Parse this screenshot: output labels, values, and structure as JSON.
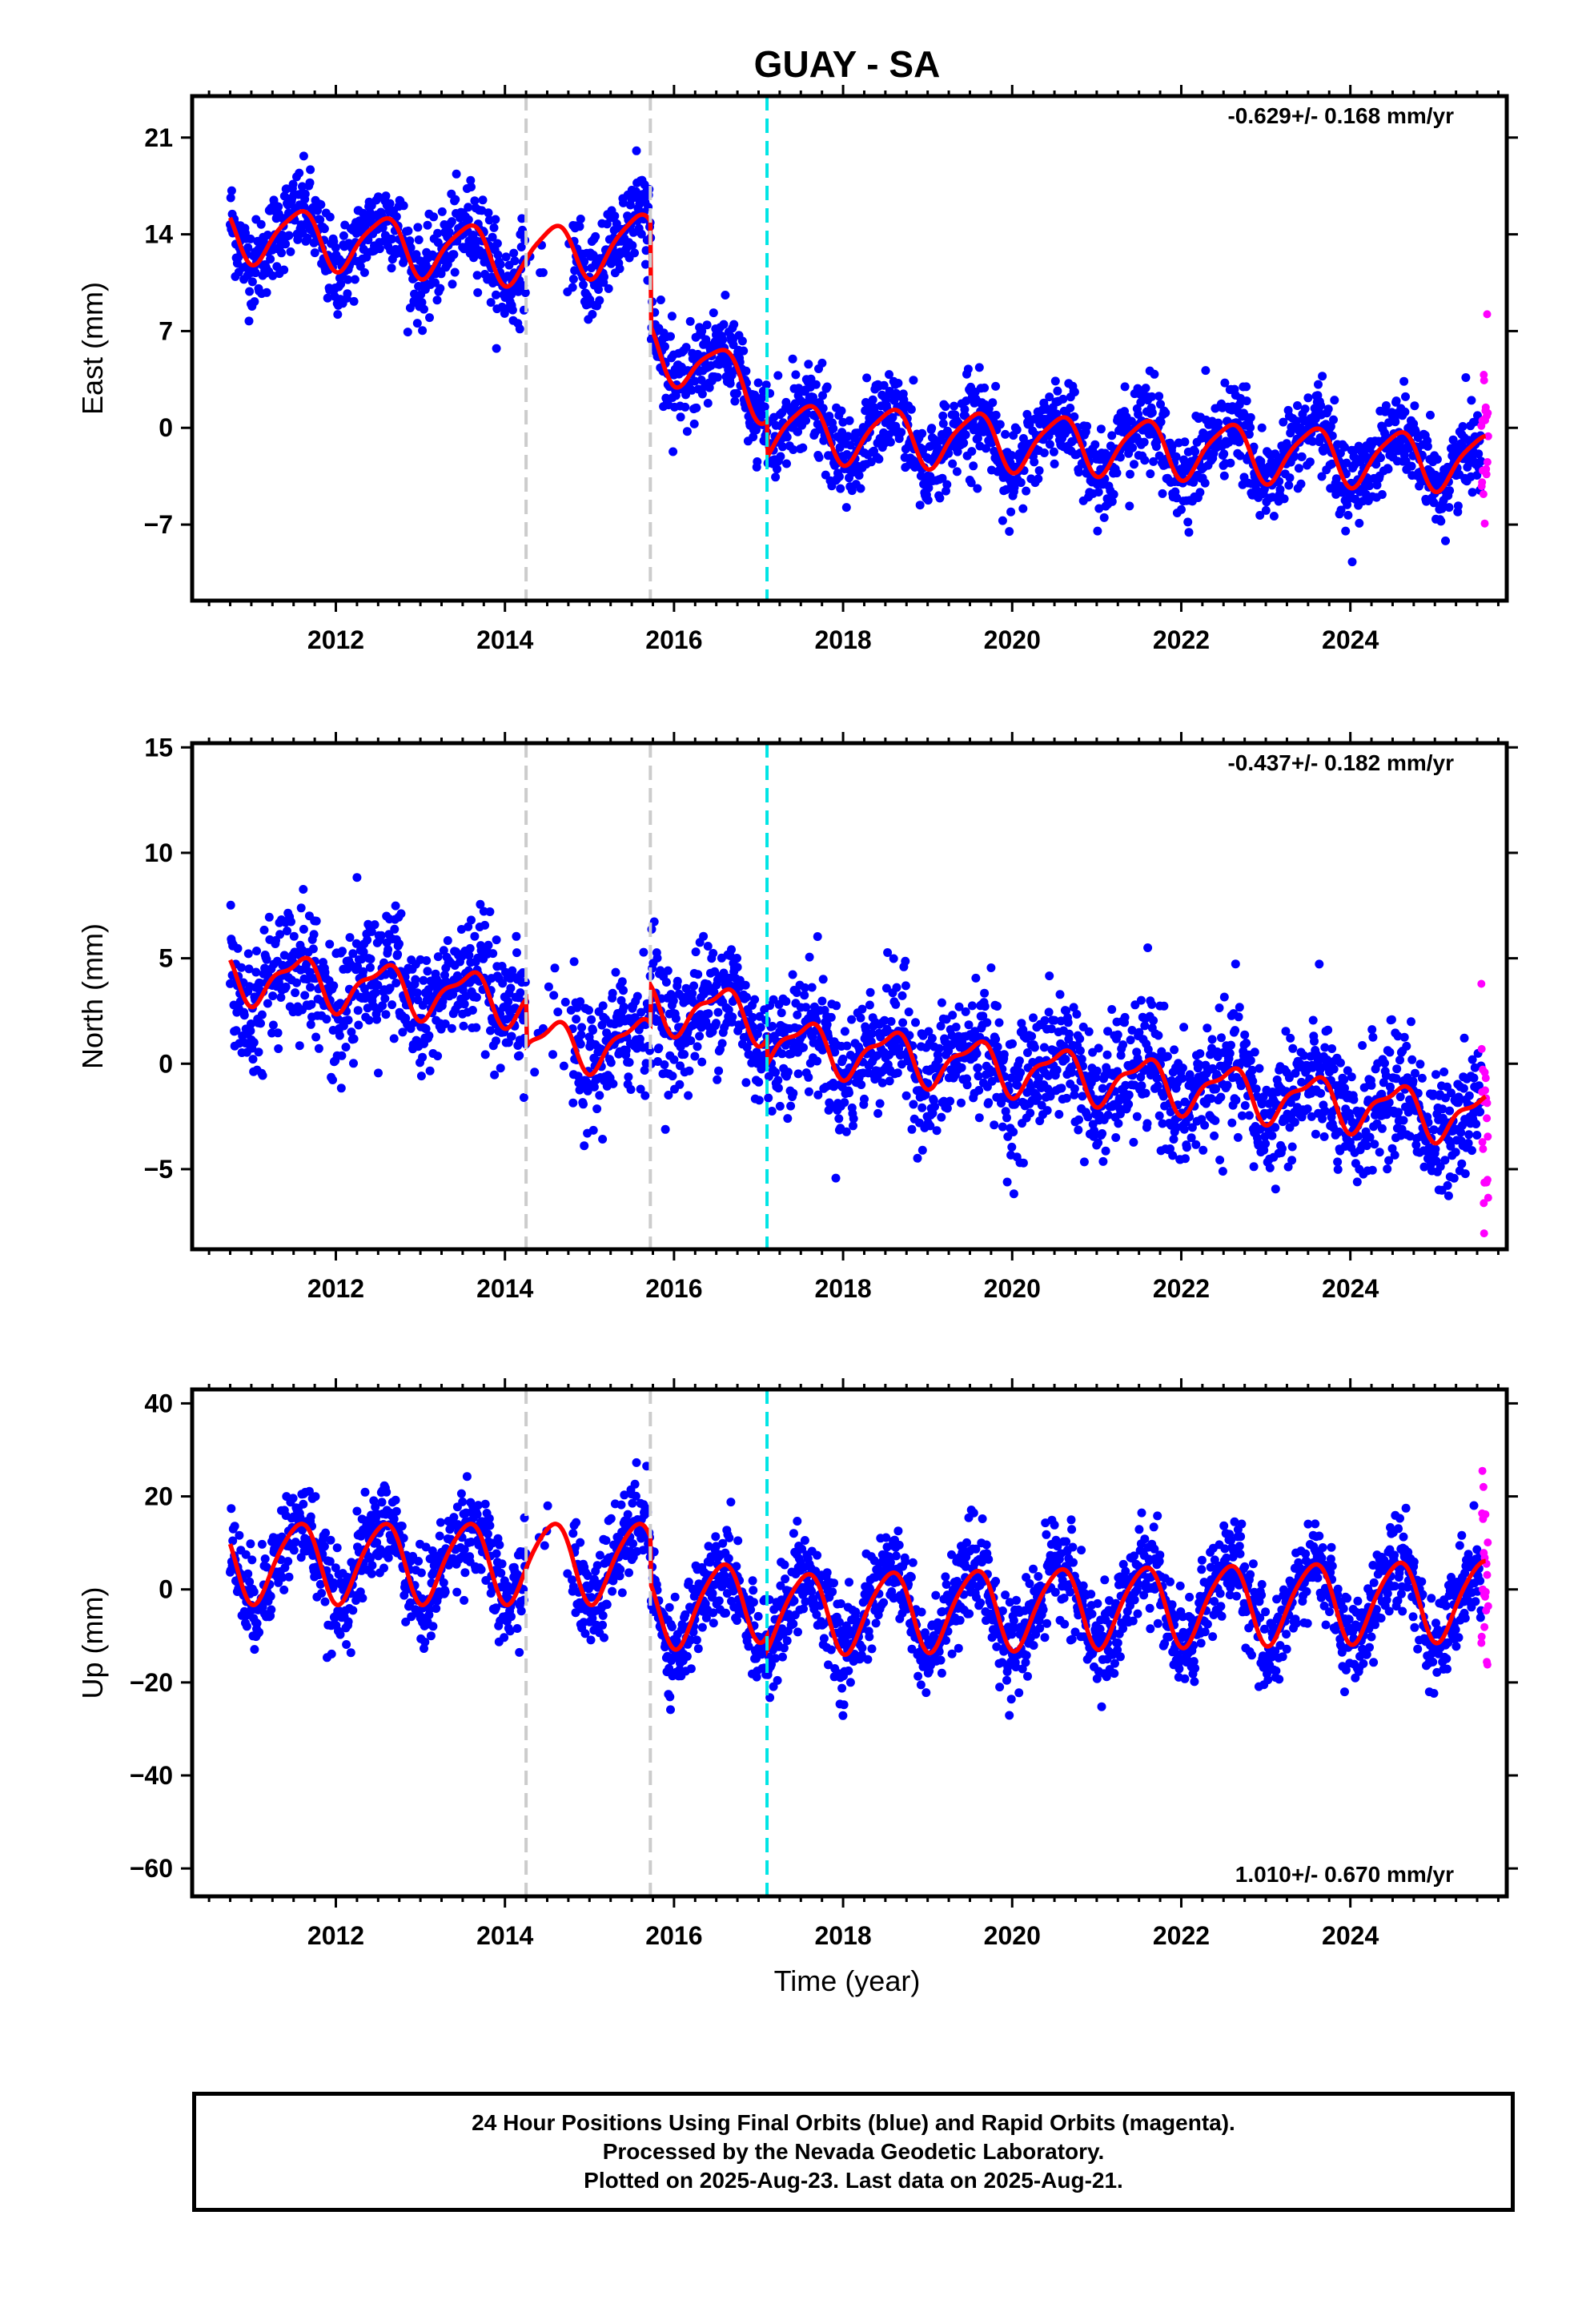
{
  "chart_data": {
    "type": "scatter",
    "title": "GUAY - SA",
    "xlabel": "Time (year)",
    "x_ticks": [
      "2012",
      "2014",
      "2016",
      "2018",
      "2020",
      "2022",
      "2024"
    ],
    "xlim": [
      2010.3,
      2025.85
    ],
    "breaks": [
      {
        "year": 2014.25,
        "color": "#cccccc"
      },
      {
        "year": 2015.72,
        "color": "#cccccc"
      },
      {
        "year": 2017.1,
        "color": "#00e5e5"
      }
    ],
    "data_span": {
      "start": 2010.75,
      "final_end": 2025.55,
      "rapid_end": 2025.63
    },
    "colors": {
      "final": "#0000ff",
      "rapid": "#ff00ff",
      "model": "#ff0000"
    },
    "panels": [
      {
        "ylabel": "East (mm)",
        "ylim": [
          -12.5,
          24
        ],
        "y_ticks": [
          21,
          14,
          7,
          0,
          -7
        ],
        "y_tick_labels": [
          "21",
          "14",
          "7",
          "0",
          "−7"
        ],
        "rate_label": "-0.629+/- 0.168 mm/yr",
        "rate_position": "top-right",
        "model": {
          "offsets": [
            {
              "year": 2010.75,
              "value": 14.2
            },
            {
              "year": 2014.25,
              "value": 12.4
            },
            {
              "year": 2015.72,
              "value": 13.6
            },
            {
              "year": 2015.73,
              "value": 6.0
            },
            {
              "year": 2017.1,
              "value": 2.4
            },
            {
              "year": 2017.11,
              "value": -0.2
            },
            {
              "year": 2025.6,
              "value": -2.5
            }
          ],
          "annual_amp": 2.0,
          "semi_amp": 0.4,
          "noise": 1.6
        }
      },
      {
        "ylabel": "North (mm)",
        "ylim": [
          -8.8,
          15.2
        ],
        "y_ticks": [
          15,
          10,
          5,
          0,
          -5
        ],
        "y_tick_labels": [
          "15",
          "10",
          "5",
          "0",
          "−5"
        ],
        "rate_label": "-0.437+/- 0.182 mm/yr",
        "rate_position": "top-right",
        "model": {
          "offsets": [
            {
              "year": 2010.75,
              "value": 4.2
            },
            {
              "year": 2014.25,
              "value": 3.0
            },
            {
              "year": 2014.26,
              "value": 0.8
            },
            {
              "year": 2015.72,
              "value": 1.0
            },
            {
              "year": 2015.73,
              "value": 2.8
            },
            {
              "year": 2017.1,
              "value": 2.2
            },
            {
              "year": 2017.11,
              "value": 1.0
            },
            {
              "year": 2025.6,
              "value": -2.6
            }
          ],
          "annual_amp": 1.1,
          "semi_amp": 0.4,
          "noise": 1.5
        }
      },
      {
        "ylabel": "Up (mm)",
        "ylim": [
          -66,
          43
        ],
        "y_ticks": [
          40,
          20,
          0,
          -20,
          -40,
          -60
        ],
        "y_tick_labels": [
          "40",
          "20",
          "0",
          "−20",
          "−40",
          "−60"
        ],
        "rate_label": "1.010+/- 0.670 mm/yr",
        "rate_position": "bottom-right",
        "model": {
          "offsets": [
            {
              "year": 2010.75,
              "value": 6.0
            },
            {
              "year": 2015.72,
              "value": 6.0
            },
            {
              "year": 2015.73,
              "value": -4.0
            },
            {
              "year": 2017.1,
              "value": -2.0
            },
            {
              "year": 2017.11,
              "value": -5.0
            },
            {
              "year": 2025.6,
              "value": -2.0
            }
          ],
          "annual_amp": 8.5,
          "semi_amp": 1.2,
          "noise": 5.0
        }
      }
    ]
  },
  "footer": {
    "line1": "24 Hour Positions Using Final Orbits (blue) and Rapid Orbits (magenta).",
    "line2": "Processed by the Nevada Geodetic Laboratory.",
    "line3": "Plotted on 2025-Aug-23. Last data on 2025-Aug-21."
  }
}
